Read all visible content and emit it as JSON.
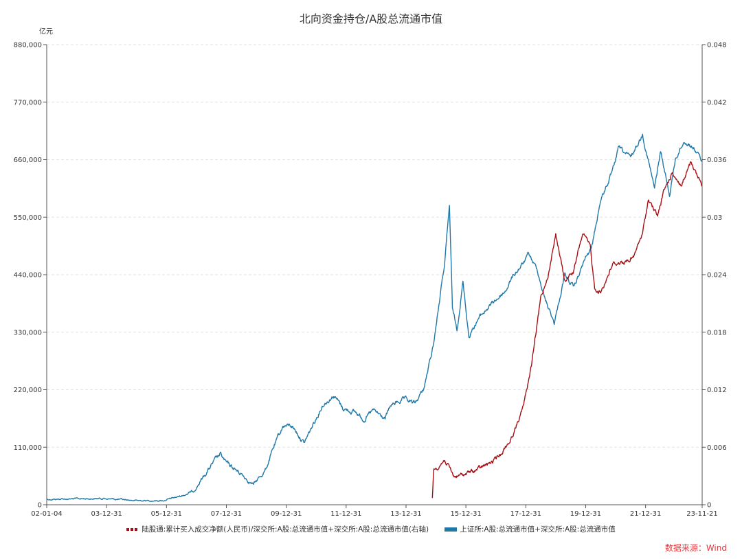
{
  "chart_data": {
    "type": "line",
    "title": "北向资金持仓/A股总流通市值",
    "ylabel": "亿元",
    "ylim": [
      0,
      880000
    ],
    "y2lim": [
      0,
      0.048
    ],
    "yticks": [
      "0",
      "110,000",
      "220,000",
      "330,000",
      "440,000",
      "550,000",
      "660,000",
      "770,000",
      "880,000"
    ],
    "y2ticks": [
      "0",
      "0.006",
      "0.012",
      "0.018",
      "0.024",
      "0.03",
      "0.036",
      "0.042",
      "0.048"
    ],
    "xlim": [
      2002.0,
      2023.89
    ],
    "xticks": [
      {
        "label": "02-01-04",
        "x": 2002.0
      },
      {
        "label": "03-12-31",
        "x": 2004.0
      },
      {
        "label": "05-12-31",
        "x": 2006.0
      },
      {
        "label": "07-12-31",
        "x": 2008.0
      },
      {
        "label": "09-12-31",
        "x": 2010.0
      },
      {
        "label": "11-12-31",
        "x": 2012.0
      },
      {
        "label": "13-12-31",
        "x": 2014.0
      },
      {
        "label": "15-12-31",
        "x": 2016.0
      },
      {
        "label": "17-12-31",
        "x": 2018.0
      },
      {
        "label": "19-12-31",
        "x": 2020.0
      },
      {
        "label": "21-12-31",
        "x": 2022.0
      },
      {
        "label": "23-11-21",
        "x": 2023.89
      }
    ],
    "grid": true,
    "legend_position": "bottom",
    "series": [
      {
        "name": "陆股通:累计买入成交净额(人民币)/深交所:A股:总流通市值+深交所:A股:总流通市值(右轴)",
        "axis": "right",
        "color": "#a50f15",
        "points": [
          [
            2014.88,
            0.0007
          ],
          [
            2014.92,
            0.0036
          ],
          [
            2015.3,
            0.0047
          ],
          [
            2015.6,
            0.0029
          ],
          [
            2016.0,
            0.0032
          ],
          [
            2016.5,
            0.0038
          ],
          [
            2017.0,
            0.0047
          ],
          [
            2017.5,
            0.0068
          ],
          [
            2017.9,
            0.01
          ],
          [
            2018.2,
            0.0147
          ],
          [
            2018.5,
            0.0215
          ],
          [
            2018.8,
            0.0247
          ],
          [
            2019.0,
            0.0283
          ],
          [
            2019.3,
            0.0233
          ],
          [
            2019.6,
            0.0244
          ],
          [
            2019.9,
            0.0283
          ],
          [
            2020.15,
            0.0269
          ],
          [
            2020.3,
            0.0226
          ],
          [
            2020.5,
            0.0222
          ],
          [
            2020.9,
            0.0251
          ],
          [
            2021.3,
            0.0254
          ],
          [
            2021.6,
            0.0258
          ],
          [
            2021.9,
            0.0283
          ],
          [
            2022.1,
            0.0319
          ],
          [
            2022.4,
            0.0301
          ],
          [
            2022.6,
            0.0326
          ],
          [
            2022.9,
            0.0347
          ],
          [
            2023.2,
            0.0333
          ],
          [
            2023.5,
            0.0355
          ],
          [
            2023.89,
            0.0333
          ]
        ]
      },
      {
        "name": "上证所:A股:总流通市值+深交所:A股:总流通市值",
        "axis": "left",
        "color": "#1f78a8",
        "points": [
          [
            2002.0,
            10500
          ],
          [
            2003.9,
            12000
          ],
          [
            2005.0,
            8000
          ],
          [
            2005.9,
            8000
          ],
          [
            2006.5,
            17000
          ],
          [
            2006.9,
            26000
          ],
          [
            2007.3,
            59000
          ],
          [
            2007.6,
            83000
          ],
          [
            2007.8,
            96000
          ],
          [
            2008.0,
            79000
          ],
          [
            2008.5,
            59000
          ],
          [
            2008.9,
            38000
          ],
          [
            2009.3,
            66000
          ],
          [
            2009.6,
            112000
          ],
          [
            2009.9,
            151000
          ],
          [
            2010.2,
            151000
          ],
          [
            2010.6,
            118000
          ],
          [
            2010.9,
            154000
          ],
          [
            2011.2,
            190000
          ],
          [
            2011.6,
            210000
          ],
          [
            2011.9,
            184000
          ],
          [
            2012.3,
            177000
          ],
          [
            2012.6,
            164000
          ],
          [
            2012.9,
            180000
          ],
          [
            2013.3,
            164000
          ],
          [
            2013.5,
            190000
          ],
          [
            2013.9,
            201000
          ],
          [
            2014.3,
            193000
          ],
          [
            2014.6,
            223000
          ],
          [
            2014.9,
            302000
          ],
          [
            2015.3,
            466000
          ],
          [
            2015.45,
            571000
          ],
          [
            2015.55,
            374000
          ],
          [
            2015.7,
            335000
          ],
          [
            2015.9,
            427000
          ],
          [
            2016.1,
            322000
          ],
          [
            2016.4,
            355000
          ],
          [
            2016.9,
            387000
          ],
          [
            2017.3,
            407000
          ],
          [
            2017.6,
            440000
          ],
          [
            2017.9,
            460000
          ],
          [
            2018.1,
            479000
          ],
          [
            2018.4,
            447000
          ],
          [
            2018.6,
            401000
          ],
          [
            2018.95,
            348000
          ],
          [
            2019.3,
            440000
          ],
          [
            2019.6,
            414000
          ],
          [
            2019.95,
            466000
          ],
          [
            2020.2,
            492000
          ],
          [
            2020.5,
            584000
          ],
          [
            2020.9,
            637000
          ],
          [
            2021.1,
            683000
          ],
          [
            2021.5,
            663000
          ],
          [
            2021.9,
            709000
          ],
          [
            2022.3,
            604000
          ],
          [
            2022.5,
            676000
          ],
          [
            2022.8,
            591000
          ],
          [
            2023.0,
            663000
          ],
          [
            2023.3,
            696000
          ],
          [
            2023.6,
            683000
          ],
          [
            2023.89,
            657000
          ]
        ]
      }
    ]
  },
  "source": "数据来源：Wind"
}
